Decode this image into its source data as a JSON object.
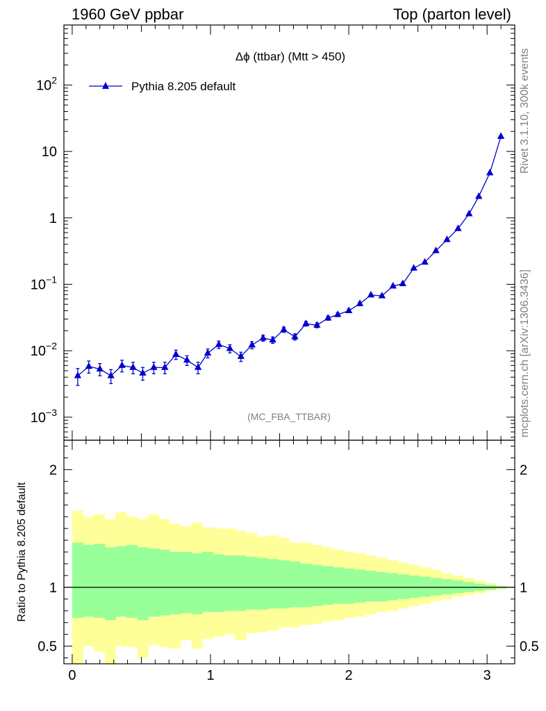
{
  "header": {
    "left": "1960 GeV ppbar",
    "right": "Top (parton level)"
  },
  "side": {
    "rivet": "Rivet 3.1.10,  300k events",
    "mcplots": "mcplots.cern.ch [arXiv:1306.3436]"
  },
  "colors": {
    "series": "#0000cc",
    "band_inner": "#99ff99",
    "band_outer": "#ffff99"
  },
  "chart_data": [
    {
      "type": "line",
      "title": "Δϕ (ttbar) (Mtt > 450)",
      "analysis_label": "(MC_FBA_TTBAR)",
      "xlabel": "",
      "ylabel": "",
      "yscale": "log",
      "xlim": [
        -0.06,
        3.2
      ],
      "ylim": [
        0.00045,
        800
      ],
      "legend": {
        "position": "top-left",
        "label": "Pythia 8.205 default"
      },
      "y_ticks": [
        {
          "value": 0.001,
          "mantissa": "10",
          "exponent": "−3"
        },
        {
          "value": 0.01,
          "mantissa": "10",
          "exponent": "−2"
        },
        {
          "value": 0.1,
          "mantissa": "10",
          "exponent": "−1"
        },
        {
          "value": 1,
          "mantissa": "1",
          "exponent": ""
        },
        {
          "value": 10,
          "mantissa": "10",
          "exponent": ""
        },
        {
          "value": 100,
          "mantissa": "10",
          "exponent": "2"
        }
      ],
      "series": [
        {
          "name": "Pythia 8.205 default",
          "x": [
            0.04,
            0.12,
            0.2,
            0.28,
            0.36,
            0.44,
            0.51,
            0.59,
            0.67,
            0.75,
            0.83,
            0.91,
            0.98,
            1.06,
            1.14,
            1.22,
            1.3,
            1.38,
            1.45,
            1.53,
            1.61,
            1.69,
            1.77,
            1.85,
            1.92,
            2.0,
            2.08,
            2.16,
            2.24,
            2.32,
            2.39,
            2.47,
            2.55,
            2.63,
            2.71,
            2.79,
            2.87,
            2.94,
            3.02,
            3.1
          ],
          "y": [
            0.0042,
            0.0058,
            0.0053,
            0.0042,
            0.006,
            0.0056,
            0.0046,
            0.0056,
            0.0056,
            0.0088,
            0.0072,
            0.0056,
            0.0092,
            0.0124,
            0.0108,
            0.0082,
            0.0122,
            0.0155,
            0.0145,
            0.0208,
            0.0162,
            0.0255,
            0.0242,
            0.031,
            0.035,
            0.04,
            0.051,
            0.069,
            0.067,
            0.094,
            0.102,
            0.175,
            0.215,
            0.32,
            0.47,
            0.69,
            1.15,
            2.1,
            4.75,
            16.8
          ],
          "yerr": [
            0.0012,
            0.0012,
            0.0011,
            0.001,
            0.0012,
            0.0011,
            0.001,
            0.0011,
            0.0011,
            0.0014,
            0.0012,
            0.0011,
            0.0014,
            0.0016,
            0.0015,
            0.0013,
            0.0015,
            0.0016,
            0.0016,
            0.0019,
            0.0017,
            0.002,
            0.002,
            0.0022,
            0.0023,
            0.0025,
            0.0028,
            0.003,
            0.003,
            0.0035,
            0.0037,
            0.005,
            0.0055,
            0.007,
            0.009,
            0.011,
            0.015,
            0.02,
            0.03,
            0.05
          ]
        }
      ]
    },
    {
      "type": "area",
      "title": "",
      "xlabel": "",
      "ylabel": "Ratio to Pythia 8.205 default",
      "xlim": [
        -0.06,
        3.2
      ],
      "ylim": [
        0.35,
        2.25
      ],
      "x_ticks": [
        "0",
        "1",
        "2",
        "3"
      ],
      "y_ticks": [
        "0.5",
        "1",
        "2"
      ],
      "reference_line": 1,
      "bin_edges": [
        0.0,
        0.0785,
        0.157,
        0.2355,
        0.314,
        0.3925,
        0.471,
        0.5495,
        0.628,
        0.7065,
        0.785,
        0.8635,
        0.942,
        1.0205,
        1.099,
        1.1775,
        1.256,
        1.3345,
        1.413,
        1.4915,
        1.57,
        1.6485,
        1.727,
        1.8055,
        1.884,
        1.9625,
        2.041,
        2.1195,
        2.198,
        2.2765,
        2.355,
        2.4335,
        2.512,
        2.5905,
        2.669,
        2.7475,
        2.826,
        2.9045,
        2.983,
        3.0615,
        3.14
      ],
      "band_inner_up": [
        1.38,
        1.36,
        1.37,
        1.34,
        1.35,
        1.36,
        1.34,
        1.33,
        1.32,
        1.3,
        1.3,
        1.29,
        1.3,
        1.28,
        1.27,
        1.27,
        1.26,
        1.25,
        1.24,
        1.23,
        1.22,
        1.2,
        1.19,
        1.18,
        1.17,
        1.16,
        1.15,
        1.14,
        1.13,
        1.12,
        1.11,
        1.1,
        1.09,
        1.08,
        1.07,
        1.06,
        1.045,
        1.03,
        1.02,
        1.01
      ],
      "band_inner_down": [
        0.74,
        0.75,
        0.74,
        0.72,
        0.75,
        0.74,
        0.72,
        0.75,
        0.76,
        0.77,
        0.78,
        0.77,
        0.79,
        0.79,
        0.8,
        0.8,
        0.81,
        0.81,
        0.82,
        0.82,
        0.83,
        0.83,
        0.84,
        0.85,
        0.86,
        0.86,
        0.87,
        0.88,
        0.88,
        0.89,
        0.9,
        0.91,
        0.92,
        0.93,
        0.94,
        0.95,
        0.96,
        0.97,
        0.98,
        0.99
      ],
      "band_outer_up": [
        1.65,
        1.6,
        1.62,
        1.58,
        1.64,
        1.6,
        1.58,
        1.62,
        1.58,
        1.54,
        1.52,
        1.55,
        1.51,
        1.5,
        1.5,
        1.48,
        1.46,
        1.43,
        1.44,
        1.42,
        1.38,
        1.38,
        1.36,
        1.34,
        1.32,
        1.3,
        1.29,
        1.27,
        1.25,
        1.23,
        1.21,
        1.19,
        1.17,
        1.15,
        1.12,
        1.1,
        1.08,
        1.055,
        1.035,
        1.015
      ],
      "band_outer_down": [
        0.35,
        0.5,
        0.45,
        0.35,
        0.5,
        0.49,
        0.4,
        0.51,
        0.49,
        0.48,
        0.55,
        0.48,
        0.56,
        0.58,
        0.6,
        0.55,
        0.61,
        0.62,
        0.63,
        0.66,
        0.66,
        0.68,
        0.69,
        0.71,
        0.72,
        0.74,
        0.75,
        0.77,
        0.79,
        0.8,
        0.82,
        0.84,
        0.86,
        0.88,
        0.9,
        0.92,
        0.93,
        0.95,
        0.97,
        0.985
      ]
    }
  ]
}
